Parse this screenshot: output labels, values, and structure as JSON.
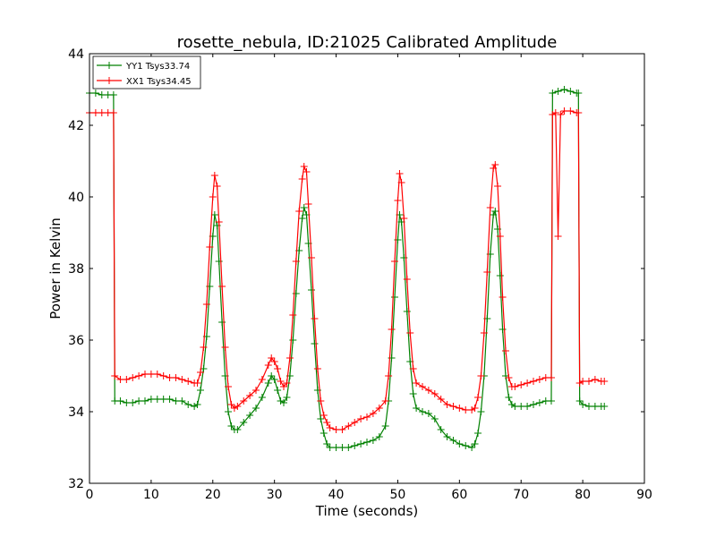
{
  "chart_data": {
    "type": "line",
    "title": "rosette_nebula, ID:21025 Calibrated Amplitude",
    "xlabel": "Time (seconds)",
    "ylabel": "Power in Kelvin",
    "xlim": [
      0,
      90
    ],
    "ylim": [
      32,
      44
    ],
    "xticks": [
      0,
      10,
      20,
      30,
      40,
      50,
      60,
      70,
      80,
      90
    ],
    "yticks": [
      32,
      34,
      36,
      38,
      40,
      42,
      44
    ],
    "grid": false,
    "legend_position": "upper-left",
    "series": [
      {
        "name": "YY1 Tsys33.74",
        "color": "#008000",
        "marker": "+",
        "points": [
          [
            0,
            42.9
          ],
          [
            1,
            42.9
          ],
          [
            2,
            42.85
          ],
          [
            3,
            42.85
          ],
          [
            3.9,
            42.85
          ],
          [
            4.1,
            34.3
          ],
          [
            5,
            34.3
          ],
          [
            6,
            34.25
          ],
          [
            7,
            34.25
          ],
          [
            8,
            34.3
          ],
          [
            9,
            34.3
          ],
          [
            10,
            34.35
          ],
          [
            11,
            34.35
          ],
          [
            12,
            34.35
          ],
          [
            13,
            34.35
          ],
          [
            14,
            34.3
          ],
          [
            15,
            34.3
          ],
          [
            16,
            34.2
          ],
          [
            17,
            34.15
          ],
          [
            17.5,
            34.2
          ],
          [
            18,
            34.6
          ],
          [
            18.5,
            35.2
          ],
          [
            19,
            36.1
          ],
          [
            19.5,
            37.5
          ],
          [
            20,
            38.9
          ],
          [
            20.3,
            39.5
          ],
          [
            20.7,
            39.2
          ],
          [
            21,
            38.2
          ],
          [
            21.5,
            36.5
          ],
          [
            22,
            35.0
          ],
          [
            22.5,
            34.0
          ],
          [
            23,
            33.6
          ],
          [
            23.5,
            33.5
          ],
          [
            24,
            33.5
          ],
          [
            25,
            33.7
          ],
          [
            26,
            33.9
          ],
          [
            27,
            34.1
          ],
          [
            28,
            34.4
          ],
          [
            29,
            34.8
          ],
          [
            29.5,
            35.0
          ],
          [
            30,
            34.9
          ],
          [
            30.5,
            34.6
          ],
          [
            31,
            34.3
          ],
          [
            31.5,
            34.25
          ],
          [
            32,
            34.4
          ],
          [
            32.5,
            35.0
          ],
          [
            33,
            36.0
          ],
          [
            33.5,
            37.3
          ],
          [
            34,
            38.5
          ],
          [
            34.5,
            39.4
          ],
          [
            34.8,
            39.7
          ],
          [
            35.2,
            39.5
          ],
          [
            35.5,
            38.7
          ],
          [
            36,
            37.4
          ],
          [
            36.5,
            35.9
          ],
          [
            37,
            34.6
          ],
          [
            37.5,
            33.8
          ],
          [
            38,
            33.4
          ],
          [
            38.5,
            33.1
          ],
          [
            39,
            33.0
          ],
          [
            40,
            33.0
          ],
          [
            41,
            33.0
          ],
          [
            42,
            33.0
          ],
          [
            43,
            33.05
          ],
          [
            44,
            33.1
          ],
          [
            45,
            33.15
          ],
          [
            46,
            33.2
          ],
          [
            47,
            33.3
          ],
          [
            48,
            33.6
          ],
          [
            48.5,
            34.3
          ],
          [
            49,
            35.5
          ],
          [
            49.5,
            37.2
          ],
          [
            50,
            38.8
          ],
          [
            50.3,
            39.5
          ],
          [
            50.6,
            39.3
          ],
          [
            51,
            38.3
          ],
          [
            51.5,
            36.8
          ],
          [
            52,
            35.4
          ],
          [
            52.5,
            34.5
          ],
          [
            53,
            34.1
          ],
          [
            54,
            34.0
          ],
          [
            55,
            33.95
          ],
          [
            56,
            33.8
          ],
          [
            57,
            33.5
          ],
          [
            58,
            33.3
          ],
          [
            59,
            33.2
          ],
          [
            60,
            33.1
          ],
          [
            61,
            33.05
          ],
          [
            62,
            33.0
          ],
          [
            62.5,
            33.1
          ],
          [
            63,
            33.4
          ],
          [
            63.5,
            34.0
          ],
          [
            64,
            35.0
          ],
          [
            64.5,
            36.6
          ],
          [
            65,
            38.4
          ],
          [
            65.5,
            39.5
          ],
          [
            65.8,
            39.6
          ],
          [
            66.2,
            39.1
          ],
          [
            66.6,
            37.8
          ],
          [
            67,
            36.3
          ],
          [
            67.5,
            35.0
          ],
          [
            68,
            34.4
          ],
          [
            68.5,
            34.2
          ],
          [
            69,
            34.15
          ],
          [
            70,
            34.15
          ],
          [
            71,
            34.15
          ],
          [
            72,
            34.2
          ],
          [
            73,
            34.25
          ],
          [
            74,
            34.3
          ],
          [
            74.9,
            34.3
          ],
          [
            75.1,
            42.9
          ],
          [
            76,
            42.95
          ],
          [
            77,
            43.0
          ],
          [
            78,
            42.95
          ],
          [
            79,
            42.9
          ],
          [
            79.3,
            42.9
          ],
          [
            79.5,
            34.3
          ],
          [
            80,
            34.2
          ],
          [
            81,
            34.15
          ],
          [
            82,
            34.15
          ],
          [
            83,
            34.15
          ],
          [
            83.5,
            34.15
          ]
        ]
      },
      {
        "name": "XX1 Tsys34.45",
        "color": "#ff0000",
        "marker": "+",
        "points": [
          [
            0,
            42.35
          ],
          [
            1,
            42.35
          ],
          [
            2,
            42.35
          ],
          [
            3,
            42.35
          ],
          [
            3.9,
            42.35
          ],
          [
            4.1,
            35.0
          ],
          [
            5,
            34.9
          ],
          [
            6,
            34.9
          ],
          [
            7,
            34.95
          ],
          [
            8,
            35.0
          ],
          [
            9,
            35.05
          ],
          [
            10,
            35.05
          ],
          [
            11,
            35.05
          ],
          [
            12,
            35.0
          ],
          [
            13,
            34.95
          ],
          [
            14,
            34.95
          ],
          [
            15,
            34.9
          ],
          [
            16,
            34.85
          ],
          [
            17,
            34.8
          ],
          [
            17.5,
            34.8
          ],
          [
            18,
            35.1
          ],
          [
            18.5,
            35.8
          ],
          [
            19,
            37.0
          ],
          [
            19.5,
            38.6
          ],
          [
            20,
            40.0
          ],
          [
            20.3,
            40.6
          ],
          [
            20.7,
            40.3
          ],
          [
            21,
            39.3
          ],
          [
            21.5,
            37.5
          ],
          [
            22,
            35.8
          ],
          [
            22.5,
            34.7
          ],
          [
            23,
            34.2
          ],
          [
            23.5,
            34.1
          ],
          [
            24,
            34.15
          ],
          [
            25,
            34.3
          ],
          [
            26,
            34.45
          ],
          [
            27,
            34.6
          ],
          [
            28,
            34.9
          ],
          [
            29,
            35.3
          ],
          [
            29.5,
            35.5
          ],
          [
            30,
            35.4
          ],
          [
            30.5,
            35.2
          ],
          [
            31,
            34.85
          ],
          [
            31.5,
            34.7
          ],
          [
            32,
            34.8
          ],
          [
            32.5,
            35.5
          ],
          [
            33,
            36.7
          ],
          [
            33.5,
            38.2
          ],
          [
            34,
            39.6
          ],
          [
            34.5,
            40.5
          ],
          [
            34.8,
            40.85
          ],
          [
            35.2,
            40.7
          ],
          [
            35.5,
            39.8
          ],
          [
            36,
            38.3
          ],
          [
            36.5,
            36.6
          ],
          [
            37,
            35.2
          ],
          [
            37.5,
            34.3
          ],
          [
            38,
            33.9
          ],
          [
            38.5,
            33.7
          ],
          [
            39,
            33.55
          ],
          [
            40,
            33.5
          ],
          [
            41,
            33.5
          ],
          [
            42,
            33.6
          ],
          [
            43,
            33.7
          ],
          [
            44,
            33.8
          ],
          [
            45,
            33.85
          ],
          [
            46,
            33.95
          ],
          [
            47,
            34.1
          ],
          [
            48,
            34.3
          ],
          [
            48.5,
            35.0
          ],
          [
            49,
            36.3
          ],
          [
            49.5,
            38.2
          ],
          [
            50,
            39.9
          ],
          [
            50.3,
            40.65
          ],
          [
            50.6,
            40.4
          ],
          [
            51,
            39.4
          ],
          [
            51.5,
            37.7
          ],
          [
            52,
            36.2
          ],
          [
            52.5,
            35.2
          ],
          [
            53,
            34.8
          ],
          [
            54,
            34.7
          ],
          [
            55,
            34.6
          ],
          [
            56,
            34.5
          ],
          [
            57,
            34.35
          ],
          [
            58,
            34.2
          ],
          [
            59,
            34.15
          ],
          [
            60,
            34.1
          ],
          [
            61,
            34.05
          ],
          [
            62,
            34.05
          ],
          [
            62.5,
            34.1
          ],
          [
            63,
            34.4
          ],
          [
            63.5,
            35.0
          ],
          [
            64,
            36.2
          ],
          [
            64.5,
            37.9
          ],
          [
            65,
            39.7
          ],
          [
            65.5,
            40.8
          ],
          [
            65.8,
            40.9
          ],
          [
            66.2,
            40.3
          ],
          [
            66.6,
            38.9
          ],
          [
            67,
            37.2
          ],
          [
            67.5,
            35.7
          ],
          [
            68,
            34.95
          ],
          [
            68.5,
            34.7
          ],
          [
            69,
            34.7
          ],
          [
            70,
            34.75
          ],
          [
            71,
            34.8
          ],
          [
            72,
            34.85
          ],
          [
            73,
            34.9
          ],
          [
            74,
            34.95
          ],
          [
            74.9,
            34.95
          ],
          [
            75.1,
            42.3
          ],
          [
            75.6,
            42.35
          ],
          [
            76,
            38.9
          ],
          [
            76.4,
            42.3
          ],
          [
            77,
            42.4
          ],
          [
            78,
            42.4
          ],
          [
            79,
            42.35
          ],
          [
            79.3,
            42.35
          ],
          [
            79.5,
            34.8
          ],
          [
            80,
            34.85
          ],
          [
            81,
            34.85
          ],
          [
            82,
            34.9
          ],
          [
            83,
            34.85
          ],
          [
            83.5,
            34.85
          ]
        ]
      }
    ]
  }
}
